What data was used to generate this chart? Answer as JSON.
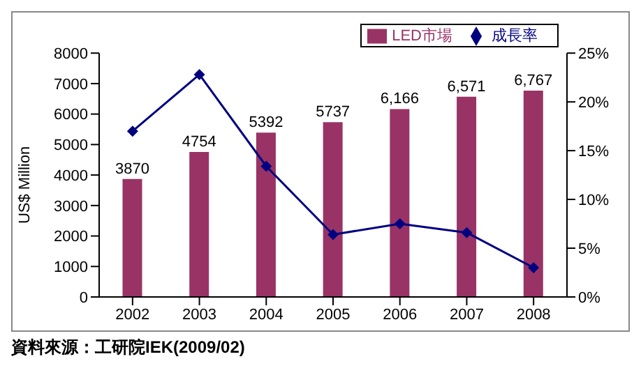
{
  "chart_data": {
    "type": "bar",
    "categories": [
      "2002",
      "2003",
      "2004",
      "2005",
      "2006",
      "2007",
      "2008"
    ],
    "series": [
      {
        "name": "LED市場",
        "color": "#993366",
        "values": [
          3870,
          4754,
          5392,
          5737,
          6166,
          6571,
          6767
        ],
        "value_labels": [
          "3870",
          "4754",
          "5392",
          "5737",
          "6,166",
          "6,571",
          "6,767"
        ]
      },
      {
        "name": "成長率",
        "type": "line",
        "axis": "y2",
        "color": "#000080",
        "values": [
          17,
          22.8,
          13.4,
          6.4,
          7.5,
          6.6,
          3.0
        ]
      }
    ],
    "ylabel": "US$ Million",
    "ylim": [
      0,
      8000
    ],
    "yticks": [
      0,
      1000,
      2000,
      3000,
      4000,
      5000,
      6000,
      7000,
      8000
    ],
    "y2lim": [
      0,
      25
    ],
    "y2ticks": [
      {
        "value": 0,
        "label": "0%"
      },
      {
        "value": 5,
        "label": "5%"
      },
      {
        "value": 10,
        "label": "10%"
      },
      {
        "value": 15,
        "label": "15%"
      },
      {
        "value": 20,
        "label": "20%"
      },
      {
        "value": 25,
        "label": "25%"
      }
    ],
    "legend": "top right",
    "marker": "diamond",
    "grid": false,
    "annotations": [
      "資料來源：工研院IEK(2009/02)"
    ]
  }
}
